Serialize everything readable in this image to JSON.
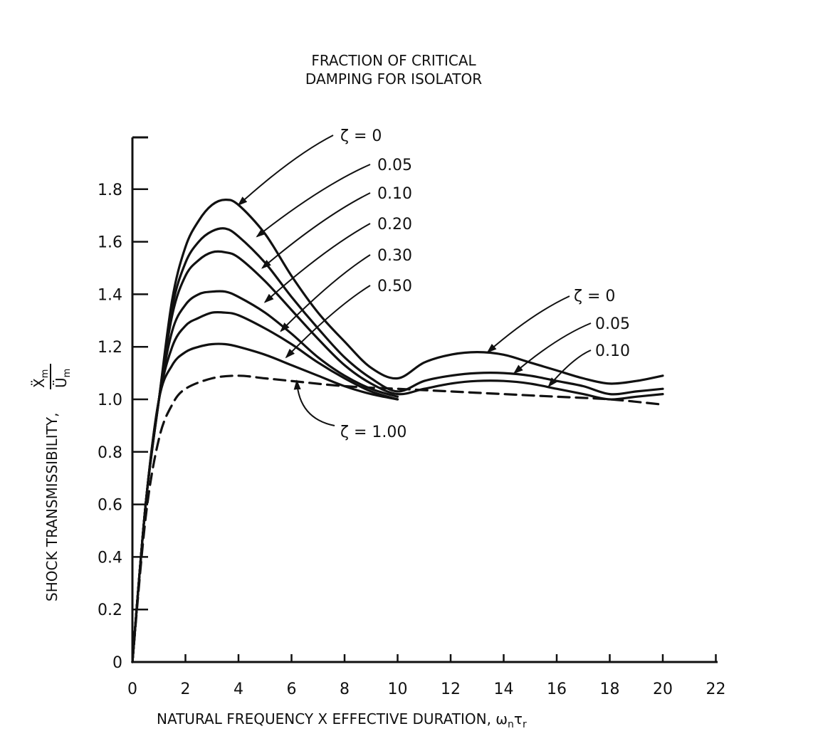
{
  "chart_data": {
    "type": "line",
    "title_line1": "FRACTION OF CRITICAL",
    "title_line2": "DAMPING FOR ISOLATOR",
    "xlabel": "NATURAL FREQUENCY X EFFECTIVE DURATION, ω",
    "xlabel_sub1": "n",
    "xlabel_tau": "τ",
    "xlabel_sub2": "r",
    "ylabel": "SHOCK TRANSMISSIBILITY,",
    "ylabel_num": "Ẍ",
    "ylabel_num_sub": "m",
    "ylabel_den": "Ü",
    "ylabel_den_sub": "m",
    "xlim": [
      0,
      22
    ],
    "ylim": [
      0,
      2.0
    ],
    "x_ticks": [
      0,
      2,
      4,
      6,
      8,
      10,
      12,
      14,
      16,
      18,
      20,
      22
    ],
    "x_tick_labels": [
      "0",
      "2",
      "4",
      "6",
      "8",
      "10",
      "12",
      "14",
      "16",
      "18",
      "20",
      "22"
    ],
    "y_ticks": [
      0,
      0.2,
      0.4,
      0.6,
      0.8,
      1.0,
      1.2,
      1.4,
      1.6,
      1.8
    ],
    "y_tick_labels": [
      "0",
      "0.2",
      "0.4",
      "0.6",
      "0.8",
      "1.0",
      "1.2",
      "1.4",
      "1.6",
      "1.8"
    ],
    "grid": false,
    "series": [
      {
        "zeta": 0,
        "style": "solid",
        "x": [
          0,
          0.5,
          1,
          1.5,
          2,
          2.5,
          3,
          3.5,
          4,
          5,
          6,
          7,
          8,
          9,
          10,
          11,
          12,
          13,
          14,
          15,
          16,
          17,
          18,
          19,
          20
        ],
        "y": [
          0,
          0.6,
          1.0,
          1.38,
          1.58,
          1.68,
          1.74,
          1.76,
          1.74,
          1.63,
          1.47,
          1.33,
          1.22,
          1.12,
          1.08,
          1.14,
          1.17,
          1.18,
          1.17,
          1.14,
          1.11,
          1.08,
          1.06,
          1.07,
          1.09
        ]
      },
      {
        "zeta": 0.05,
        "style": "solid",
        "x": [
          0,
          0.5,
          1,
          1.5,
          2,
          2.5,
          3,
          3.5,
          4,
          5,
          6,
          7,
          8,
          9,
          10,
          11,
          12,
          13,
          14,
          15,
          16,
          17,
          18,
          19,
          20
        ],
        "y": [
          0,
          0.6,
          1.0,
          1.35,
          1.52,
          1.6,
          1.64,
          1.65,
          1.62,
          1.52,
          1.39,
          1.27,
          1.16,
          1.08,
          1.03,
          1.07,
          1.09,
          1.1,
          1.1,
          1.09,
          1.07,
          1.05,
          1.02,
          1.03,
          1.04
        ]
      },
      {
        "zeta": 0.1,
        "style": "solid",
        "x": [
          0,
          0.5,
          1,
          1.5,
          2,
          2.5,
          3,
          3.5,
          4,
          5,
          6,
          7,
          8,
          9,
          10,
          11,
          12,
          13,
          14,
          15,
          16,
          17,
          18,
          19,
          20
        ],
        "y": [
          0,
          0.6,
          1.0,
          1.32,
          1.47,
          1.53,
          1.56,
          1.56,
          1.54,
          1.45,
          1.34,
          1.23,
          1.13,
          1.06,
          1.02,
          1.04,
          1.06,
          1.07,
          1.07,
          1.06,
          1.04,
          1.02,
          1.0,
          1.01,
          1.02
        ]
      },
      {
        "zeta": 0.2,
        "style": "solid",
        "x": [
          0,
          0.5,
          1,
          1.5,
          2,
          2.5,
          3,
          3.5,
          4,
          5,
          6,
          7,
          8,
          9,
          10
        ],
        "y": [
          0,
          0.6,
          1.0,
          1.26,
          1.36,
          1.4,
          1.41,
          1.41,
          1.39,
          1.33,
          1.25,
          1.16,
          1.09,
          1.04,
          1.01
        ]
      },
      {
        "zeta": 0.3,
        "style": "solid",
        "x": [
          0,
          0.5,
          1,
          1.5,
          2,
          2.5,
          3,
          3.5,
          4,
          5,
          6,
          7,
          8,
          9,
          10
        ],
        "y": [
          0,
          0.6,
          1.0,
          1.2,
          1.28,
          1.31,
          1.33,
          1.33,
          1.32,
          1.27,
          1.21,
          1.14,
          1.08,
          1.03,
          1.0
        ]
      },
      {
        "zeta": 0.5,
        "style": "solid",
        "x": [
          0,
          0.5,
          1,
          1.5,
          2,
          2.5,
          3,
          3.5,
          4,
          5,
          6,
          7,
          8,
          9,
          10
        ],
        "y": [
          0,
          0.6,
          1.0,
          1.13,
          1.18,
          1.2,
          1.21,
          1.21,
          1.2,
          1.17,
          1.13,
          1.09,
          1.05,
          1.02,
          1.0
        ]
      },
      {
        "zeta": 1.0,
        "style": "dashed",
        "x": [
          0,
          0.5,
          1,
          1.5,
          2,
          3,
          4,
          5,
          6,
          8,
          10,
          12,
          14,
          16,
          18,
          20
        ],
        "y": [
          0,
          0.55,
          0.85,
          0.98,
          1.04,
          1.08,
          1.09,
          1.08,
          1.07,
          1.05,
          1.04,
          1.03,
          1.02,
          1.01,
          1.0,
          0.98
        ]
      }
    ],
    "annotations": {
      "left": [
        {
          "label": "ζ = 0",
          "target_x": 4.0,
          "target_y": 1.74
        },
        {
          "label": "0.05",
          "target_x": 4.7,
          "target_y": 1.62
        },
        {
          "label": "0.10",
          "target_x": 4.9,
          "target_y": 1.5
        },
        {
          "label": "0.20",
          "target_x": 5.0,
          "target_y": 1.37
        },
        {
          "label": "0.30",
          "target_x": 5.6,
          "target_y": 1.26
        },
        {
          "label": "0.50",
          "target_x": 5.8,
          "target_y": 1.16
        }
      ],
      "right": [
        {
          "label": "ζ = 0",
          "target_x": 13.4,
          "target_y": 1.18
        },
        {
          "label": "0.05",
          "target_x": 14.4,
          "target_y": 1.1
        },
        {
          "label": "0.10",
          "target_x": 15.7,
          "target_y": 1.05
        }
      ],
      "bottom": [
        {
          "label": "ζ = 1.00",
          "target_x": 6.2,
          "target_y": 1.07
        }
      ]
    }
  }
}
